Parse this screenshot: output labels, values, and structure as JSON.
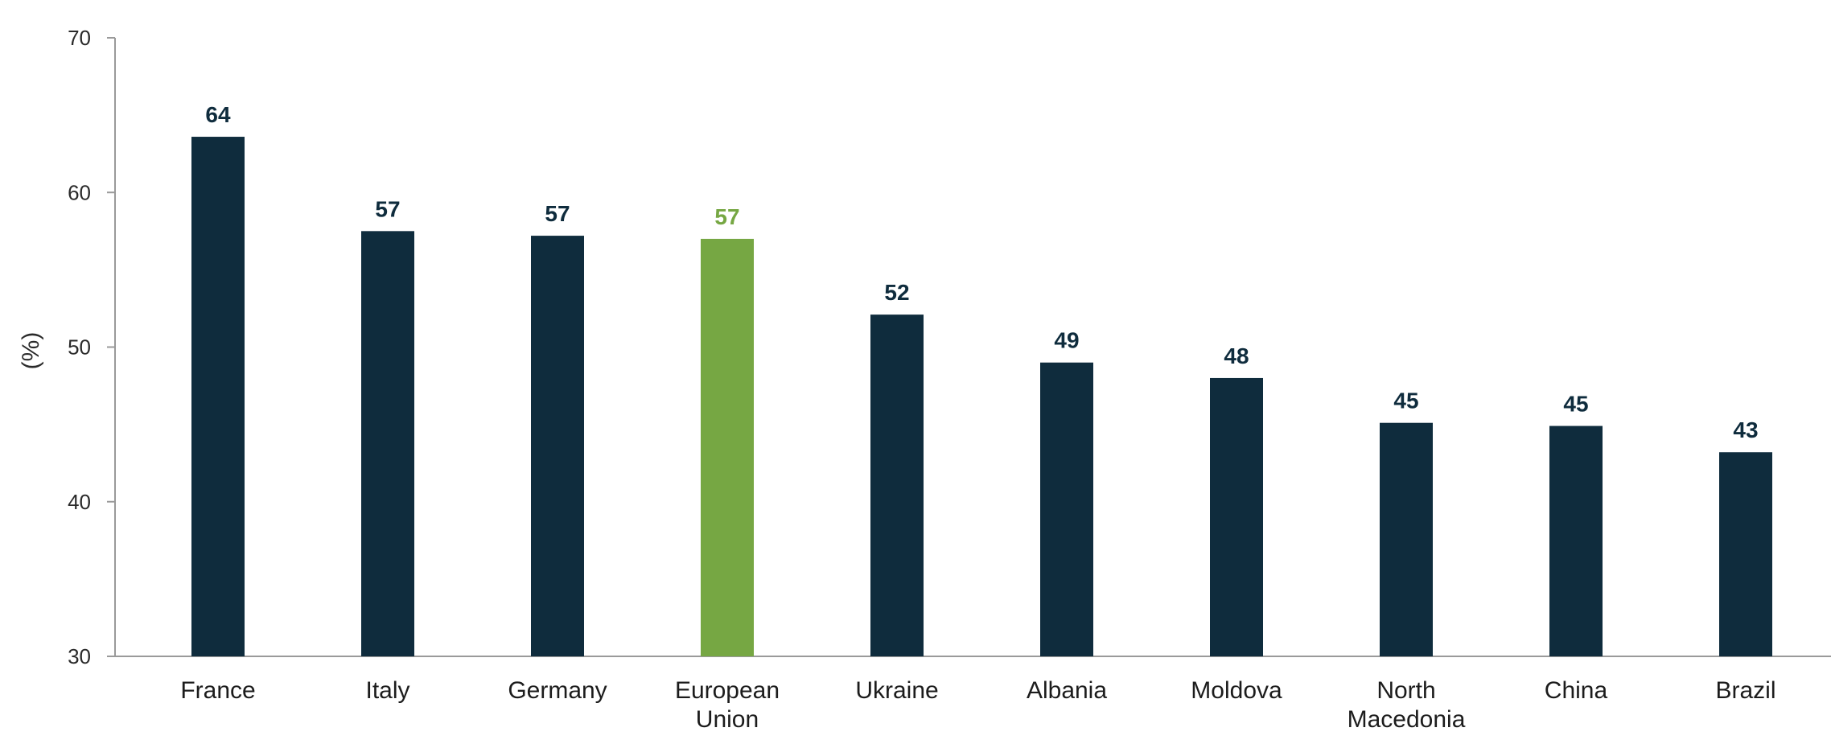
{
  "chart_data": {
    "type": "bar",
    "categories": [
      "France",
      "Italy",
      "Germany",
      "European Union",
      "Ukraine",
      "Albania",
      "Moldova",
      "North Macedonia",
      "China",
      "Brazil"
    ],
    "values": [
      63.6,
      57.5,
      57.2,
      57.0,
      52.1,
      49.0,
      48.0,
      45.1,
      44.9,
      43.2
    ],
    "data_labels": [
      "64",
      "57",
      "57",
      "57",
      "52",
      "49",
      "48",
      "45",
      "45",
      "43"
    ],
    "category_lines": [
      [
        "France"
      ],
      [
        "Italy"
      ],
      [
        "Germany"
      ],
      [
        "European",
        "Union"
      ],
      [
        "Ukraine"
      ],
      [
        "Albania"
      ],
      [
        "Moldova"
      ],
      [
        "North",
        "Macedonia"
      ],
      [
        "China"
      ],
      [
        "Brazil"
      ]
    ],
    "title": "",
    "xlabel": "",
    "ylabel": "(%)",
    "ylim": [
      30,
      70
    ],
    "yticks": [
      30,
      40,
      50,
      60,
      70
    ],
    "grid": false,
    "colors": {
      "default": "#0f2c3d",
      "highlight": "#76a743",
      "highlight_category": "European Union"
    }
  }
}
